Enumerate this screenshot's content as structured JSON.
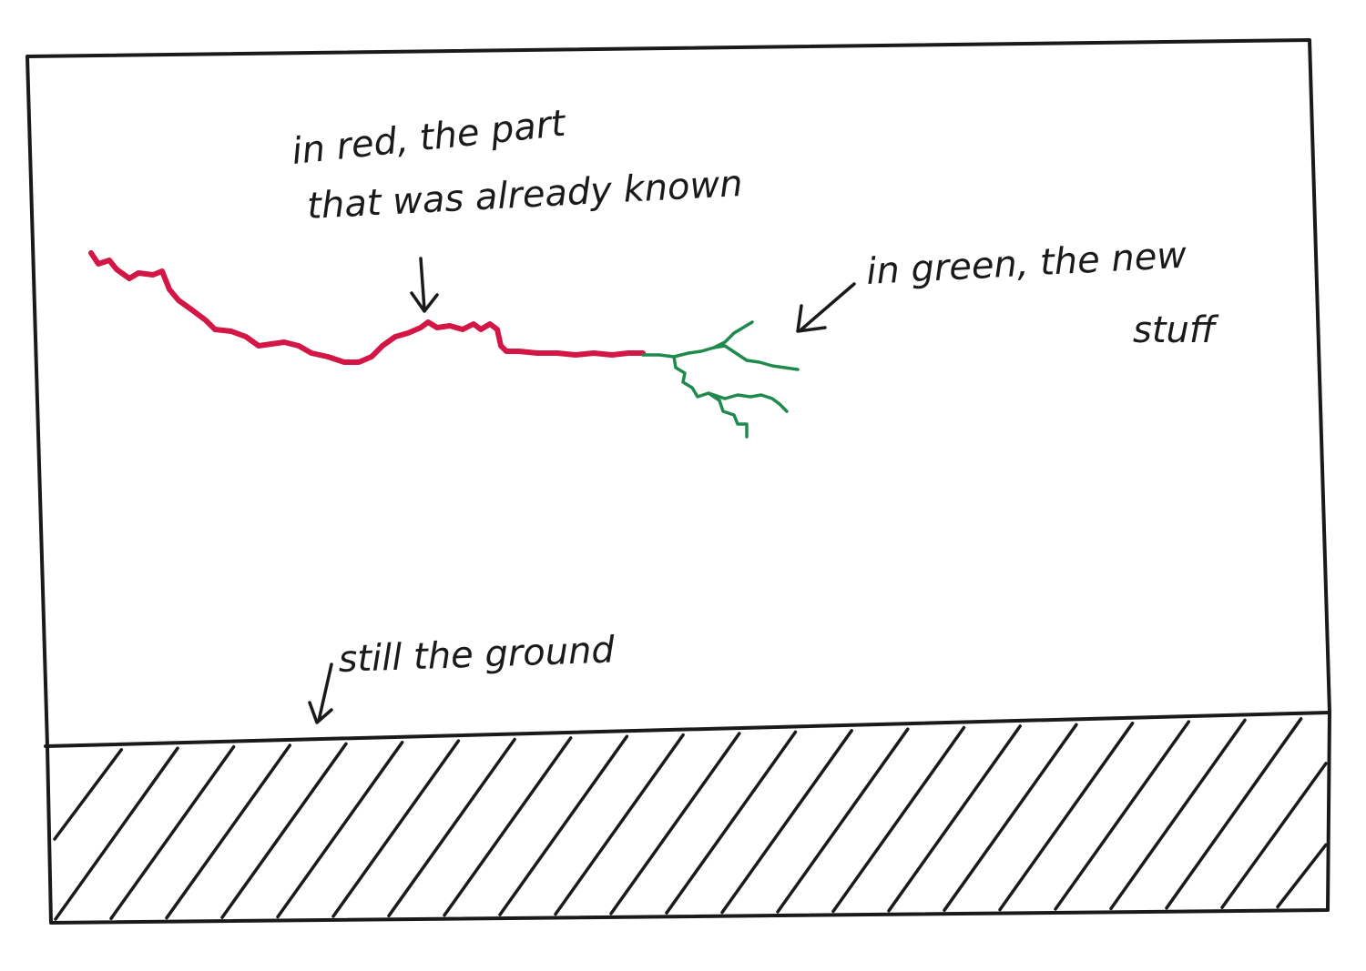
{
  "annotations": {
    "red_line1": "in red, the part",
    "red_line2": "that was already known",
    "green_line1": "in green, the new",
    "green_line2": "stuff",
    "ground": "still the ground"
  },
  "colors": {
    "known_path": "#d31645",
    "new_branches": "#1e8a4c",
    "ink": "#1a1a1a",
    "paper": "#ffffff"
  }
}
